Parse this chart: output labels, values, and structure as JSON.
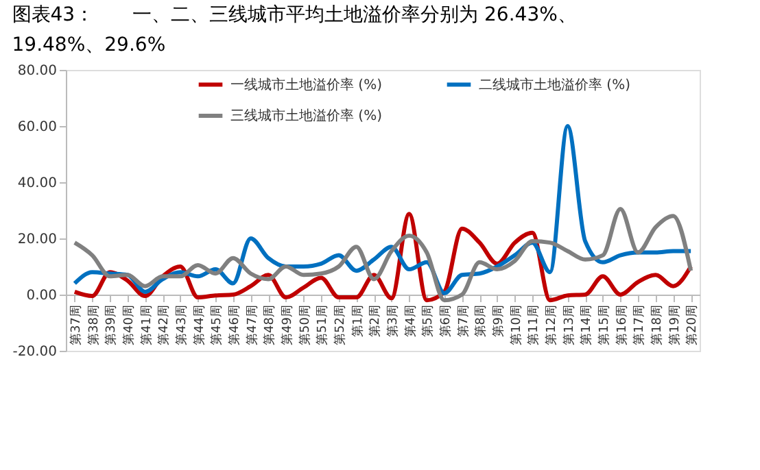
{
  "chart_data": {
    "type": "line",
    "title": [
      "图表43：　　一、二、三线城市平均土地溢价率分别为 26.43%、",
      "19.48%、29.6%"
    ],
    "categories": [
      "第37周",
      "第38周",
      "第39周",
      "第40周",
      "第41周",
      "第42周",
      "第43周",
      "第44周",
      "第45周",
      "第46周",
      "第47周",
      "第48周",
      "第49周",
      "第50周",
      "第51周",
      "第52周",
      "第1周",
      "第2周",
      "第3周",
      "第4周",
      "第5周",
      "第6周",
      "第7周",
      "第8周",
      "第9周",
      "第10周",
      "第11周",
      "第12周",
      "第13周",
      "第14周",
      "第15周",
      "第16周",
      "第17周",
      "第18周",
      "第19周",
      "第20周"
    ],
    "series": [
      {
        "name": "一线城市土地溢价率 (%)",
        "color": "#c00000",
        "values": [
          1,
          -0.5,
          8,
          5,
          -0.5,
          6.5,
          10,
          -1,
          -0.3,
          0,
          3,
          7,
          -1,
          2.5,
          6,
          -1,
          -1,
          7,
          -1.3,
          28.7,
          -2,
          1,
          23.5,
          18.5,
          11,
          18.5,
          22,
          -2,
          -0.3,
          0,
          6.5,
          0,
          4.5,
          7,
          3,
          10
        ]
      },
      {
        "name": "二线城市土地溢价率 (%)",
        "color": "#0070c0",
        "values": [
          4,
          8,
          7.5,
          7,
          1,
          5.5,
          8,
          6.5,
          9,
          4,
          20,
          13,
          10,
          10,
          11,
          14,
          8.5,
          12.5,
          17,
          9,
          11.5,
          0.5,
          7,
          7.5,
          10,
          14,
          18.5,
          8,
          60,
          19,
          11.5,
          14,
          15,
          15,
          15.5,
          15.5
        ]
      },
      {
        "name": "三线城市土地溢价率 (%)",
        "color": "#808080",
        "values": [
          18.5,
          14,
          6.5,
          7,
          3,
          6.5,
          6.5,
          10.5,
          7.5,
          13,
          7.5,
          5.5,
          10,
          7,
          7.5,
          10,
          17,
          5.5,
          15.5,
          21,
          15,
          -2,
          0,
          11.5,
          9,
          12,
          19,
          18.5,
          15.5,
          12.5,
          14,
          30.5,
          15,
          24,
          28,
          8.5
        ]
      }
    ],
    "ylim": [
      -20,
      80
    ],
    "yticks": [
      {
        "value": -20,
        "label": "-20.00"
      },
      {
        "value": 0,
        "label": "0.00"
      },
      {
        "value": 20,
        "label": "20.00"
      },
      {
        "value": 40,
        "label": "40.00"
      },
      {
        "value": 60,
        "label": "60.00"
      },
      {
        "value": 80,
        "label": "80.00"
      }
    ],
    "grid": false,
    "legend": "top",
    "marker": "none",
    "line_style": "solid"
  }
}
